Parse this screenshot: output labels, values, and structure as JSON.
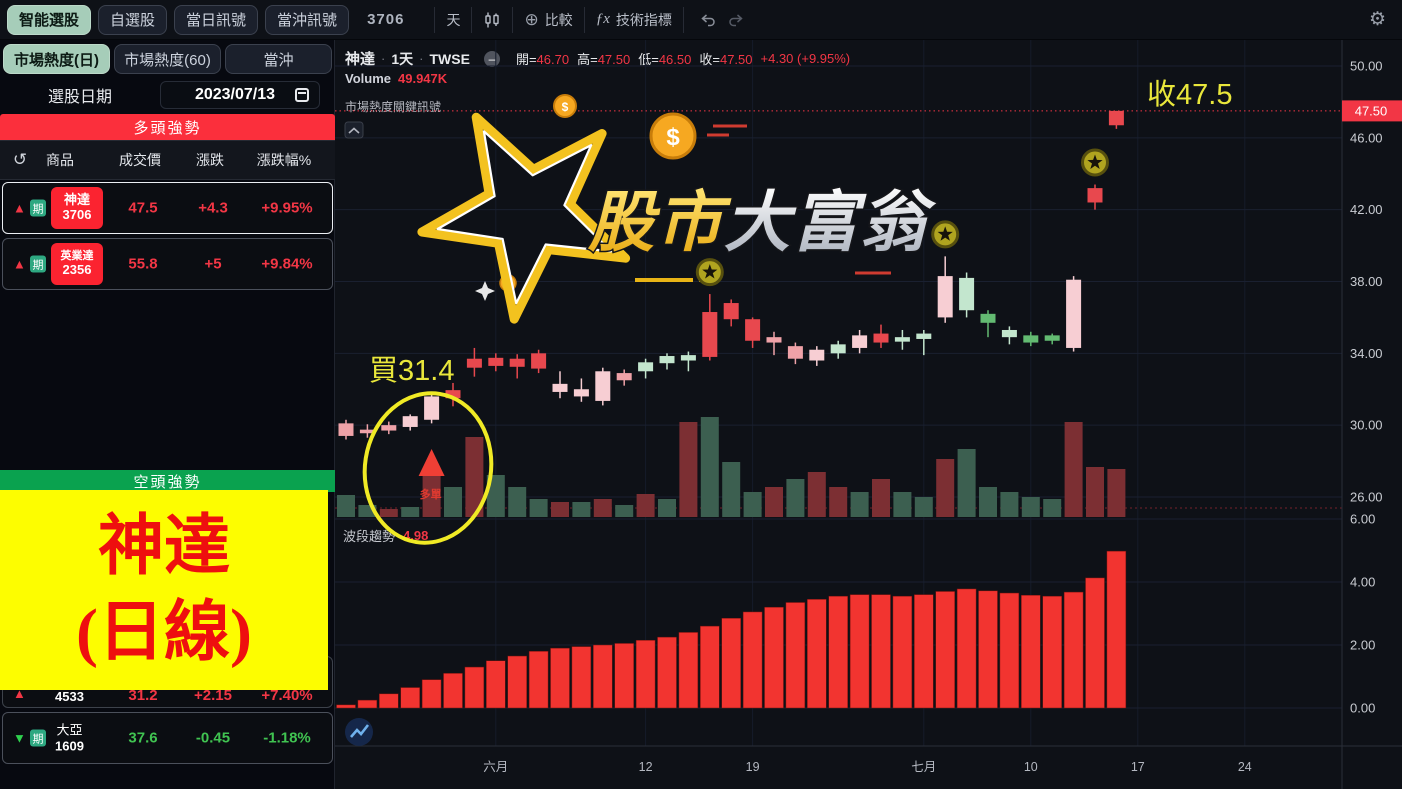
{
  "toolbar": {
    "buttons": [
      "智能選股",
      "自選股",
      "當日訊號",
      "當沖訊號"
    ],
    "symbol": "3706",
    "interval": "天",
    "compare": "比較",
    "indicators": "技術指標",
    "fx_icon": "ƒx"
  },
  "icons": {
    "up_triangle": "▲",
    "down_triangle": "▼",
    "refresh": "↺",
    "gear": "⚙",
    "circle_plus": "⊕",
    "collapse": "⌃",
    "minus": "–"
  },
  "sidebar": {
    "tabs": [
      {
        "label": "市場熱度(日)",
        "active": true
      },
      {
        "label": "市場熱度(60)",
        "active": false
      },
      {
        "label": "當沖",
        "active": false
      }
    ],
    "date_label": "選股日期",
    "date_value": "2023/07/13",
    "bull_header": "多頭強勢",
    "bear_header": "空頭強勢",
    "table_headers": [
      "商品",
      "成交價",
      "漲跌",
      "漲跌幅%"
    ],
    "rows": [
      {
        "name": "神達",
        "code": "3706",
        "futures": "期",
        "price": "47.5",
        "change": "+4.3",
        "pct": "+9.95%",
        "dir": "up"
      },
      {
        "name": "英業達",
        "code": "2356",
        "futures": "期",
        "price": "55.8",
        "change": "+5",
        "pct": "+9.84%",
        "dir": "up"
      },
      {
        "name": "",
        "code": "4533",
        "futures": "",
        "price": "31.2",
        "change": "+2.15",
        "pct": "+7.40%",
        "dir": "up"
      },
      {
        "name": "大亞",
        "code": "1609",
        "futures": "期",
        "price": "37.6",
        "change": "-0.45",
        "pct": "-1.18%",
        "dir": "down"
      }
    ],
    "overlay": {
      "line1": "神達",
      "line2": "(日線)"
    }
  },
  "chart": {
    "header": {
      "symbol": "神達",
      "sep": "·",
      "interval": "1天",
      "exchange": "TWSE",
      "o_label": "開=",
      "o": "46.70",
      "h_label": "高=",
      "h": "47.50",
      "l_label": "低=",
      "l": "46.50",
      "c_label": "收=",
      "c": "47.50",
      "change": "+4.30 (+9.95%)",
      "volume_label": "Volume",
      "volume": "49.947K",
      "signal_label": "市場熱度關鍵訊號"
    },
    "pane2": {
      "label": "波段趨勢",
      "value": "4.98"
    },
    "annotations": {
      "buy_note": "買31.4",
      "close_note": "收47.5",
      "long_note": "多單"
    },
    "watermark": {
      "gold": "股市",
      "silver": "大富翁"
    },
    "colors": {
      "up_red": "#e8484e",
      "pink": "#efa2a8",
      "pale_pink": "#f7ced3",
      "green": "#63bb72",
      "light_green": "#c3e6ce",
      "vol_red": "#7c2f33",
      "vol_green": "#3c5f50",
      "trend_red": "#f23430",
      "accent_red": "#f23645",
      "note_yellow": "#e9e73b"
    },
    "chart_data": {
      "type": "candlestick",
      "title": "神達 1天 TWSE",
      "price_ticks": [
        50,
        46,
        42,
        38,
        34,
        30,
        26
      ],
      "indicator_ticks": [
        6,
        4,
        2,
        0
      ],
      "time_ticks": [
        "六月",
        "12",
        "19",
        "七月",
        "10",
        "17",
        "24"
      ],
      "current_price": 47.5,
      "candles": [
        [
          29.4,
          30.3,
          29.2,
          30.1,
          "p"
        ],
        [
          29.75,
          30.05,
          29.3,
          29.55,
          "p"
        ],
        [
          29.7,
          30.2,
          29.5,
          30.0,
          "p"
        ],
        [
          29.9,
          30.6,
          29.7,
          30.5,
          "P"
        ],
        [
          30.3,
          31.8,
          30.1,
          31.6,
          "P"
        ],
        [
          31.5,
          32.35,
          31.05,
          31.95,
          "r"
        ],
        [
          33.2,
          34.3,
          32.7,
          33.7,
          "r"
        ],
        [
          33.3,
          34.0,
          33.0,
          33.75,
          "r"
        ],
        [
          33.7,
          33.95,
          32.6,
          33.25,
          "r"
        ],
        [
          33.15,
          34.2,
          32.9,
          34.0,
          "r"
        ],
        [
          32.3,
          33.0,
          31.5,
          31.85,
          "P"
        ],
        [
          31.6,
          32.6,
          31.3,
          32.0,
          "P"
        ],
        [
          31.35,
          33.2,
          31.1,
          33.0,
          "P"
        ],
        [
          32.9,
          33.1,
          32.2,
          32.5,
          "p"
        ],
        [
          33.0,
          33.7,
          32.6,
          33.5,
          "G"
        ],
        [
          33.45,
          34.0,
          33.1,
          33.85,
          "G"
        ],
        [
          33.6,
          34.1,
          33.0,
          33.9,
          "G"
        ],
        [
          33.8,
          37.3,
          33.6,
          36.3,
          "r"
        ],
        [
          36.8,
          37.0,
          35.5,
          35.9,
          "r"
        ],
        [
          35.9,
          36.0,
          34.3,
          34.7,
          "r"
        ],
        [
          34.6,
          35.2,
          33.9,
          34.9,
          "p"
        ],
        [
          34.4,
          34.6,
          33.4,
          33.7,
          "p"
        ],
        [
          33.6,
          34.4,
          33.3,
          34.2,
          "P"
        ],
        [
          34.0,
          34.7,
          33.7,
          34.5,
          "G"
        ],
        [
          34.3,
          35.3,
          34.0,
          35.0,
          "P"
        ],
        [
          34.6,
          35.6,
          34.3,
          35.1,
          "r"
        ],
        [
          34.9,
          35.3,
          34.2,
          34.65,
          "G"
        ],
        [
          34.8,
          35.3,
          33.9,
          35.1,
          "G"
        ],
        [
          36.0,
          39.4,
          35.7,
          38.3,
          "P"
        ],
        [
          38.2,
          38.5,
          36.0,
          36.4,
          "G"
        ],
        [
          36.2,
          36.4,
          34.9,
          35.7,
          "g"
        ],
        [
          35.3,
          35.5,
          34.5,
          34.9,
          "G"
        ],
        [
          35.0,
          35.2,
          34.4,
          34.6,
          "g"
        ],
        [
          34.7,
          35.1,
          34.5,
          35.0,
          "g"
        ],
        [
          34.3,
          38.3,
          34.1,
          38.1,
          "P"
        ],
        [
          42.4,
          43.4,
          42.0,
          43.2,
          "r"
        ],
        [
          46.7,
          47.5,
          46.5,
          47.5,
          "r"
        ]
      ],
      "volume_rel": [
        [
          22,
          "g"
        ],
        [
          12,
          "g"
        ],
        [
          8,
          "r"
        ],
        [
          10,
          "g"
        ],
        [
          45,
          "r"
        ],
        [
          30,
          "g"
        ],
        [
          80,
          "r"
        ],
        [
          42,
          "g"
        ],
        [
          30,
          "g"
        ],
        [
          18,
          "g"
        ],
        [
          15,
          "r"
        ],
        [
          15,
          "g"
        ],
        [
          18,
          "r"
        ],
        [
          12,
          "g"
        ],
        [
          23,
          "r"
        ],
        [
          18,
          "g"
        ],
        [
          95,
          "r"
        ],
        [
          100,
          "g"
        ],
        [
          55,
          "g"
        ],
        [
          25,
          "g"
        ],
        [
          30,
          "r"
        ],
        [
          38,
          "g"
        ],
        [
          45,
          "r"
        ],
        [
          30,
          "r"
        ],
        [
          25,
          "g"
        ],
        [
          38,
          "r"
        ],
        [
          25,
          "g"
        ],
        [
          20,
          "g"
        ],
        [
          58,
          "r"
        ],
        [
          68,
          "g"
        ],
        [
          30,
          "g"
        ],
        [
          25,
          "g"
        ],
        [
          20,
          "g"
        ],
        [
          18,
          "g"
        ],
        [
          95,
          "r"
        ],
        [
          50,
          "r"
        ],
        [
          48,
          "r"
        ]
      ],
      "trend": [
        0.1,
        0.25,
        0.45,
        0.65,
        0.9,
        1.1,
        1.3,
        1.5,
        1.65,
        1.8,
        1.9,
        1.95,
        2.0,
        2.05,
        2.15,
        2.25,
        2.4,
        2.6,
        2.85,
        3.05,
        3.2,
        3.35,
        3.45,
        3.55,
        3.6,
        3.6,
        3.55,
        3.6,
        3.7,
        3.78,
        3.72,
        3.65,
        3.58,
        3.55,
        3.68,
        4.13,
        4.98
      ],
      "star_signal_candles": [
        18,
        29,
        36
      ],
      "long_entry_candle": 5
    }
  }
}
